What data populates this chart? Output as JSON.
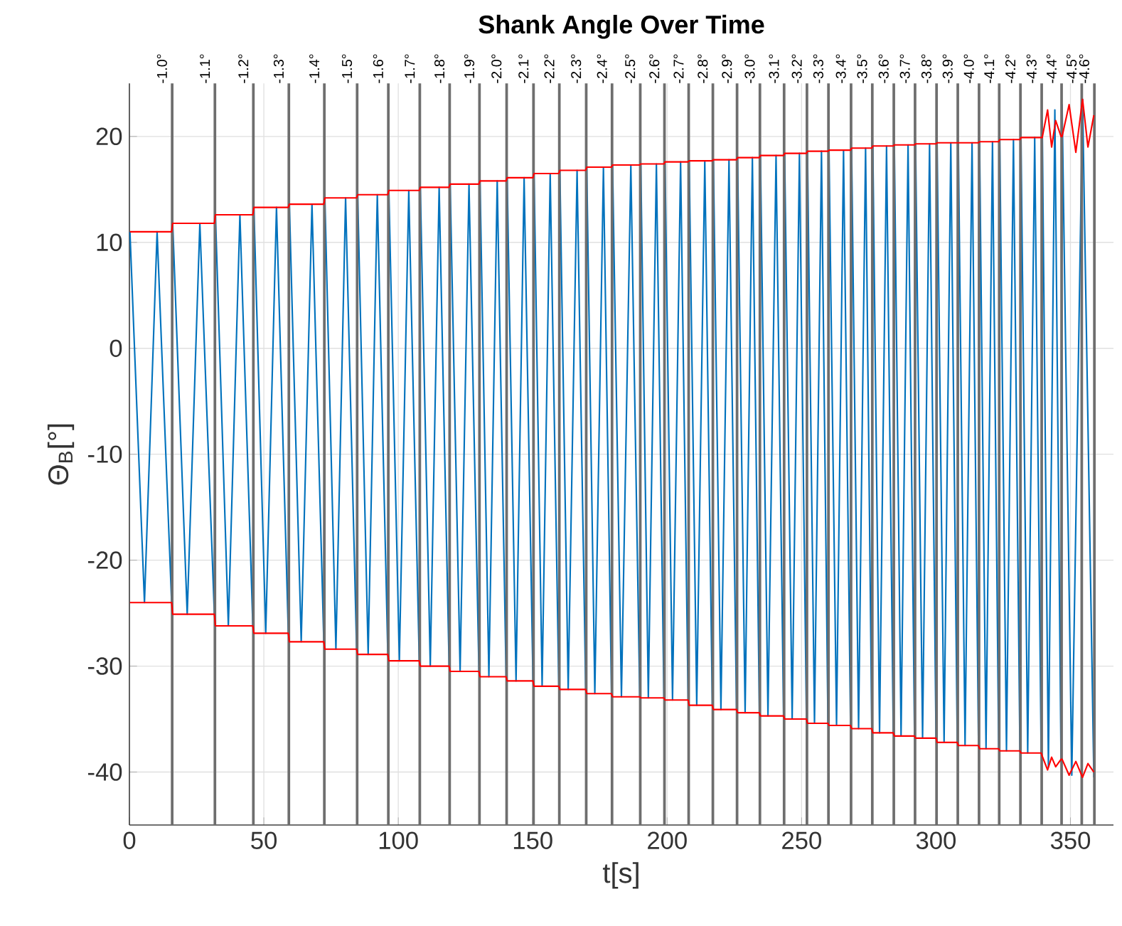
{
  "chart_data": {
    "type": "line",
    "title": "**Shank Angle Over Time**",
    "xlabel": "t[s]",
    "ylabel": "Θ$_{B}$[°]",
    "xlim": [
      0,
      366
    ],
    "ylim": [
      -45,
      25
    ],
    "xticks": [
      0,
      50,
      100,
      150,
      200,
      250,
      300,
      350
    ],
    "yticks": [
      -40,
      -30,
      -20,
      -10,
      0,
      10,
      20
    ],
    "grid": true,
    "series": [
      {
        "color": "#0072bd",
        "x": [
          0.2,
          5.6,
          10.3,
          15.7,
          16.1,
          21.5,
          26.2,
          31.6,
          32.0,
          36.8,
          41.1,
          45.9,
          46.3,
          50.7,
          54.7,
          59.1,
          59.5,
          63.9,
          67.9,
          72.3,
          72.7,
          76.8,
          80.4,
          84.5,
          84.9,
          88.8,
          92.2,
          96.1,
          96.5,
          100.4,
          103.9,
          107.8,
          108.2,
          111.9,
          115.2,
          118.9,
          119.3,
          123.0,
          126.3,
          130.0,
          130.4,
          133.7,
          136.8,
          140.1,
          140.5,
          143.8,
          146.8,
          150.1,
          150.5,
          153.5,
          156.5,
          159.7,
          160.1,
          163.2,
          166.5,
          169.7,
          170.1,
          173.1,
          176.3,
          179.3,
          179.7,
          183.0,
          186.5,
          189.8,
          190.2,
          193.0,
          196.0,
          198.8,
          199.2,
          202.0,
          205.0,
          207.8,
          208.2,
          211.0,
          214.0,
          216.8,
          217.2,
          220.0,
          223.0,
          225.8,
          226.2,
          229.0,
          231.7,
          234.3,
          234.7,
          237.5,
          240.5,
          243.3,
          243.7,
          246.5,
          249.2,
          251.8,
          252.2,
          254.8,
          257.4,
          259.8,
          260.2,
          263.0,
          265.6,
          268.2,
          268.6,
          271.2,
          273.8,
          276.1,
          276.5,
          279.0,
          281.6,
          284.1,
          284.5,
          287.0,
          289.6,
          292.0,
          292.4,
          295.0,
          297.6,
          300.0,
          300.4,
          303.0,
          305.5,
          307.9,
          308.3,
          310.8,
          313.4,
          315.8,
          316.2,
          318.6,
          321.0,
          323.3,
          323.7,
          326.2,
          328.8,
          331.2,
          331.6,
          334.1,
          336.7,
          339.1,
          339.5,
          341.8,
          344.2,
          346.5,
          346.9,
          350.5,
          354.5,
          358.7
        ],
        "values": [
          11.0,
          -24.0,
          11.0,
          -24.0,
          11.8,
          -25.1,
          11.8,
          -25.1,
          12.6,
          -26.2,
          12.6,
          -26.2,
          13.3,
          -26.9,
          13.3,
          -26.9,
          13.6,
          -27.7,
          13.6,
          -27.7,
          14.2,
          -28.4,
          14.2,
          -28.4,
          14.5,
          -28.9,
          14.5,
          -28.9,
          14.9,
          -29.5,
          14.9,
          -29.5,
          15.2,
          -30.0,
          15.2,
          -30.0,
          15.5,
          -30.5,
          15.5,
          -30.5,
          15.8,
          -31.0,
          15.8,
          -31.0,
          16.1,
          -31.4,
          16.1,
          -31.4,
          16.5,
          -31.9,
          16.5,
          -31.9,
          16.8,
          -32.2,
          16.8,
          -32.2,
          17.1,
          -32.6,
          17.1,
          -32.6,
          17.3,
          -32.9,
          17.3,
          -32.9,
          17.4,
          -33.0,
          17.4,
          -33.0,
          17.6,
          -33.2,
          17.6,
          -33.2,
          17.7,
          -33.7,
          17.7,
          -33.7,
          17.8,
          -34.1,
          17.8,
          -34.1,
          18.0,
          -34.4,
          18.0,
          -34.4,
          18.2,
          -34.7,
          18.2,
          -34.7,
          18.4,
          -35.0,
          18.4,
          -35.0,
          18.6,
          -35.4,
          18.6,
          -35.4,
          18.7,
          -35.6,
          18.7,
          -35.6,
          18.9,
          -35.9,
          18.9,
          -35.9,
          19.1,
          -36.3,
          19.1,
          -36.3,
          19.2,
          -36.6,
          19.2,
          -36.6,
          19.3,
          -36.8,
          19.3,
          -36.8,
          19.4,
          -37.2,
          19.4,
          -37.2,
          19.4,
          -37.5,
          19.4,
          -37.5,
          19.5,
          -37.8,
          19.5,
          -37.8,
          19.7,
          -38.0,
          19.7,
          -38.0,
          19.9,
          -38.2,
          19.9,
          -38.2,
          21.5,
          -39.5,
          22.5,
          -39.0,
          23.0,
          -40.3,
          23.5,
          -40.5
        ]
      },
      {
        "color": "#ff0000",
        "x": [
          0.2,
          15.7,
          16.1,
          31.6,
          32.0,
          45.9,
          46.3,
          59.1,
          59.5,
          72.3,
          72.7,
          84.5,
          84.9,
          96.1,
          96.5,
          107.8,
          108.2,
          118.9,
          119.3,
          130.0,
          130.4,
          140.1,
          140.5,
          150.1,
          150.5,
          159.7,
          160.1,
          169.7,
          170.1,
          179.3,
          179.7,
          189.8,
          190.2,
          198.8,
          199.2,
          207.8,
          208.2,
          216.8,
          217.2,
          225.8,
          226.2,
          234.3,
          234.7,
          243.3,
          243.7,
          251.8,
          252.2,
          259.8,
          260.2,
          268.2,
          268.6,
          276.1,
          276.5,
          284.1,
          284.5,
          292.0,
          292.4,
          300.0,
          300.4,
          307.9,
          308.3,
          315.8,
          316.2,
          323.3,
          323.7,
          331.2,
          331.6,
          339.1,
          339.5,
          341.5,
          343,
          344.5,
          346.5,
          346.9,
          349.5,
          352,
          354.5,
          356.5,
          358.7
        ],
        "values": [
          11.0,
          11.0,
          11.8,
          11.8,
          12.6,
          12.6,
          13.3,
          13.3,
          13.6,
          13.6,
          14.2,
          14.2,
          14.5,
          14.5,
          14.9,
          14.9,
          15.2,
          15.2,
          15.5,
          15.5,
          15.8,
          15.8,
          16.1,
          16.1,
          16.5,
          16.5,
          16.8,
          16.8,
          17.1,
          17.1,
          17.3,
          17.3,
          17.4,
          17.4,
          17.6,
          17.6,
          17.7,
          17.7,
          17.8,
          17.8,
          18.0,
          18.0,
          18.2,
          18.2,
          18.4,
          18.4,
          18.6,
          18.6,
          18.7,
          18.7,
          18.9,
          18.9,
          19.1,
          19.1,
          19.2,
          19.2,
          19.3,
          19.3,
          19.4,
          19.4,
          19.4,
          19.4,
          19.5,
          19.5,
          19.7,
          19.7,
          19.9,
          19.9,
          19.9,
          22.5,
          19.0,
          21.5,
          20.0,
          20.0,
          23.0,
          18.5,
          23.5,
          19.0,
          22.0
        ]
      },
      {
        "color": "#ff0000",
        "x": [
          0.2,
          15.7,
          16.1,
          31.6,
          32.0,
          45.9,
          46.3,
          59.1,
          59.5,
          72.3,
          72.7,
          84.5,
          84.9,
          96.1,
          96.5,
          107.8,
          108.2,
          118.9,
          119.3,
          130.0,
          130.4,
          140.1,
          140.5,
          150.1,
          150.5,
          159.7,
          160.1,
          169.7,
          170.1,
          179.3,
          179.7,
          189.8,
          190.2,
          198.8,
          199.2,
          207.8,
          208.2,
          216.8,
          217.2,
          225.8,
          226.2,
          234.3,
          234.7,
          243.3,
          243.7,
          251.8,
          252.2,
          259.8,
          260.2,
          268.2,
          268.6,
          276.1,
          276.5,
          284.1,
          284.5,
          292.0,
          292.4,
          300.0,
          300.4,
          307.9,
          308.3,
          315.8,
          316.2,
          323.3,
          323.7,
          331.2,
          331.6,
          339.1,
          339.5,
          341.5,
          343,
          344.5,
          346.5,
          346.9,
          349.5,
          352,
          354.5,
          356.5,
          358.7
        ],
        "values": [
          -24.0,
          -24.0,
          -25.1,
          -25.1,
          -26.2,
          -26.2,
          -26.9,
          -26.9,
          -27.7,
          -27.7,
          -28.4,
          -28.4,
          -28.9,
          -28.9,
          -29.5,
          -29.5,
          -30.0,
          -30.0,
          -30.5,
          -30.5,
          -31.0,
          -31.0,
          -31.4,
          -31.4,
          -31.9,
          -31.9,
          -32.2,
          -32.2,
          -32.6,
          -32.6,
          -32.9,
          -32.9,
          -33.0,
          -33.0,
          -33.2,
          -33.2,
          -33.7,
          -33.7,
          -34.1,
          -34.1,
          -34.4,
          -34.4,
          -34.7,
          -34.7,
          -35.0,
          -35.0,
          -35.4,
          -35.4,
          -35.6,
          -35.6,
          -35.9,
          -35.9,
          -36.3,
          -36.3,
          -36.6,
          -36.6,
          -36.8,
          -36.8,
          -37.2,
          -37.2,
          -37.5,
          -37.5,
          -37.8,
          -37.8,
          -38.0,
          -38.0,
          -38.2,
          -38.2,
          -38.5,
          -39.8,
          -38.6,
          -39.5,
          -38.8,
          -38.8,
          -40.3,
          -39.0,
          -40.5,
          -39.2,
          -40.0
        ]
      }
    ],
    "ref_lines": [
      {
        "axis": "x",
        "value": 15.9,
        "color": "#6e6e6e"
      },
      {
        "axis": "x",
        "value": 31.8,
        "color": "#6e6e6e"
      },
      {
        "axis": "x",
        "value": 46.1,
        "color": "#6e6e6e"
      },
      {
        "axis": "x",
        "value": 59.3,
        "color": "#6e6e6e"
      },
      {
        "axis": "x",
        "value": 72.5,
        "color": "#6e6e6e"
      },
      {
        "axis": "x",
        "value": 84.7,
        "color": "#6e6e6e"
      },
      {
        "axis": "x",
        "value": 96.3,
        "color": "#6e6e6e"
      },
      {
        "axis": "x",
        "value": 108,
        "color": "#6e6e6e"
      },
      {
        "axis": "x",
        "value": 119.1,
        "color": "#6e6e6e"
      },
      {
        "axis": "x",
        "value": 130.2,
        "color": "#6e6e6e"
      },
      {
        "axis": "x",
        "value": 140.3,
        "color": "#6e6e6e"
      },
      {
        "axis": "x",
        "value": 150.3,
        "color": "#6e6e6e"
      },
      {
        "axis": "x",
        "value": 159.9,
        "color": "#6e6e6e"
      },
      {
        "axis": "x",
        "value": 169.9,
        "color": "#6e6e6e"
      },
      {
        "axis": "x",
        "value": 179.5,
        "color": "#6e6e6e"
      },
      {
        "axis": "x",
        "value": 190,
        "color": "#6e6e6e"
      },
      {
        "axis": "x",
        "value": 199,
        "color": "#6e6e6e"
      },
      {
        "axis": "x",
        "value": 208,
        "color": "#6e6e6e"
      },
      {
        "axis": "x",
        "value": 217,
        "color": "#6e6e6e"
      },
      {
        "axis": "x",
        "value": 226,
        "color": "#6e6e6e"
      },
      {
        "axis": "x",
        "value": 234.5,
        "color": "#6e6e6e"
      },
      {
        "axis": "x",
        "value": 243.5,
        "color": "#6e6e6e"
      },
      {
        "axis": "x",
        "value": 252,
        "color": "#6e6e6e"
      },
      {
        "axis": "x",
        "value": 260,
        "color": "#6e6e6e"
      },
      {
        "axis": "x",
        "value": 268.4,
        "color": "#6e6e6e"
      },
      {
        "axis": "x",
        "value": 276.3,
        "color": "#6e6e6e"
      },
      {
        "axis": "x",
        "value": 284.3,
        "color": "#6e6e6e"
      },
      {
        "axis": "x",
        "value": 292.2,
        "color": "#6e6e6e"
      },
      {
        "axis": "x",
        "value": 300.2,
        "color": "#6e6e6e"
      },
      {
        "axis": "x",
        "value": 308.1,
        "color": "#6e6e6e"
      },
      {
        "axis": "x",
        "value": 316,
        "color": "#6e6e6e"
      },
      {
        "axis": "x",
        "value": 323.5,
        "color": "#6e6e6e"
      },
      {
        "axis": "x",
        "value": 331.4,
        "color": "#6e6e6e"
      },
      {
        "axis": "x",
        "value": 339.3,
        "color": "#6e6e6e"
      },
      {
        "axis": "x",
        "value": 346.7,
        "color": "#6e6e6e"
      },
      {
        "axis": "x",
        "value": 354.2,
        "color": "#6e6e6e"
      },
      {
        "axis": "x",
        "value": 358.9,
        "color": "#6e6e6e"
      }
    ],
    "annotations": [
      {
        "text": "-1.0°",
        "x": 15.9,
        "y": 25
      },
      {
        "text": "-1.1°",
        "x": 31.8,
        "y": 25
      },
      {
        "text": "-1.2°",
        "x": 46.1,
        "y": 25
      },
      {
        "text": "-1.3°",
        "x": 59.3,
        "y": 25
      },
      {
        "text": "-1.4°",
        "x": 72.5,
        "y": 25
      },
      {
        "text": "-1.5°",
        "x": 84.7,
        "y": 25
      },
      {
        "text": "-1.6°",
        "x": 96.3,
        "y": 25
      },
      {
        "text": "-1.7°",
        "x": 108,
        "y": 25
      },
      {
        "text": "-1.8°",
        "x": 119.1,
        "y": 25
      },
      {
        "text": "-1.9°",
        "x": 130.2,
        "y": 25
      },
      {
        "text": "-2.0°",
        "x": 140.3,
        "y": 25
      },
      {
        "text": "-2.1°",
        "x": 150.3,
        "y": 25
      },
      {
        "text": "-2.2°",
        "x": 159.9,
        "y": 25
      },
      {
        "text": "-2.3°",
        "x": 169.9,
        "y": 25
      },
      {
        "text": "-2.4°",
        "x": 179.5,
        "y": 25
      },
      {
        "text": "-2.5°",
        "x": 190,
        "y": 25
      },
      {
        "text": "-2.6°",
        "x": 199,
        "y": 25
      },
      {
        "text": "-2.7°",
        "x": 208,
        "y": 25
      },
      {
        "text": "-2.8°",
        "x": 217,
        "y": 25
      },
      {
        "text": "-2.9°",
        "x": 226,
        "y": 25
      },
      {
        "text": "-3.0°",
        "x": 234.5,
        "y": 25
      },
      {
        "text": "-3.1°",
        "x": 243.5,
        "y": 25
      },
      {
        "text": "-3.2°",
        "x": 252,
        "y": 25
      },
      {
        "text": "-3.3°",
        "x": 260,
        "y": 25
      },
      {
        "text": "-3.4°",
        "x": 268.4,
        "y": 25
      },
      {
        "text": "-3.5°",
        "x": 276.3,
        "y": 25
      },
      {
        "text": "-3.6°",
        "x": 284.3,
        "y": 25
      },
      {
        "text": "-3.7°",
        "x": 292.2,
        "y": 25
      },
      {
        "text": "-3.8°",
        "x": 300.2,
        "y": 25
      },
      {
        "text": "-3.9°",
        "x": 308.1,
        "y": 25
      },
      {
        "text": "-4.0°",
        "x": 316,
        "y": 25
      },
      {
        "text": "-4.1°",
        "x": 323.5,
        "y": 25
      },
      {
        "text": "-4.2°",
        "x": 331.4,
        "y": 25
      },
      {
        "text": "-4.3°",
        "x": 339.3,
        "y": 25
      },
      {
        "text": "-4.4°",
        "x": 346.7,
        "y": 25
      },
      {
        "text": "-4.5°",
        "x": 354.2,
        "y": 25
      },
      {
        "text": "-4.6°",
        "x": 358.9,
        "y": 25
      }
    ]
  }
}
